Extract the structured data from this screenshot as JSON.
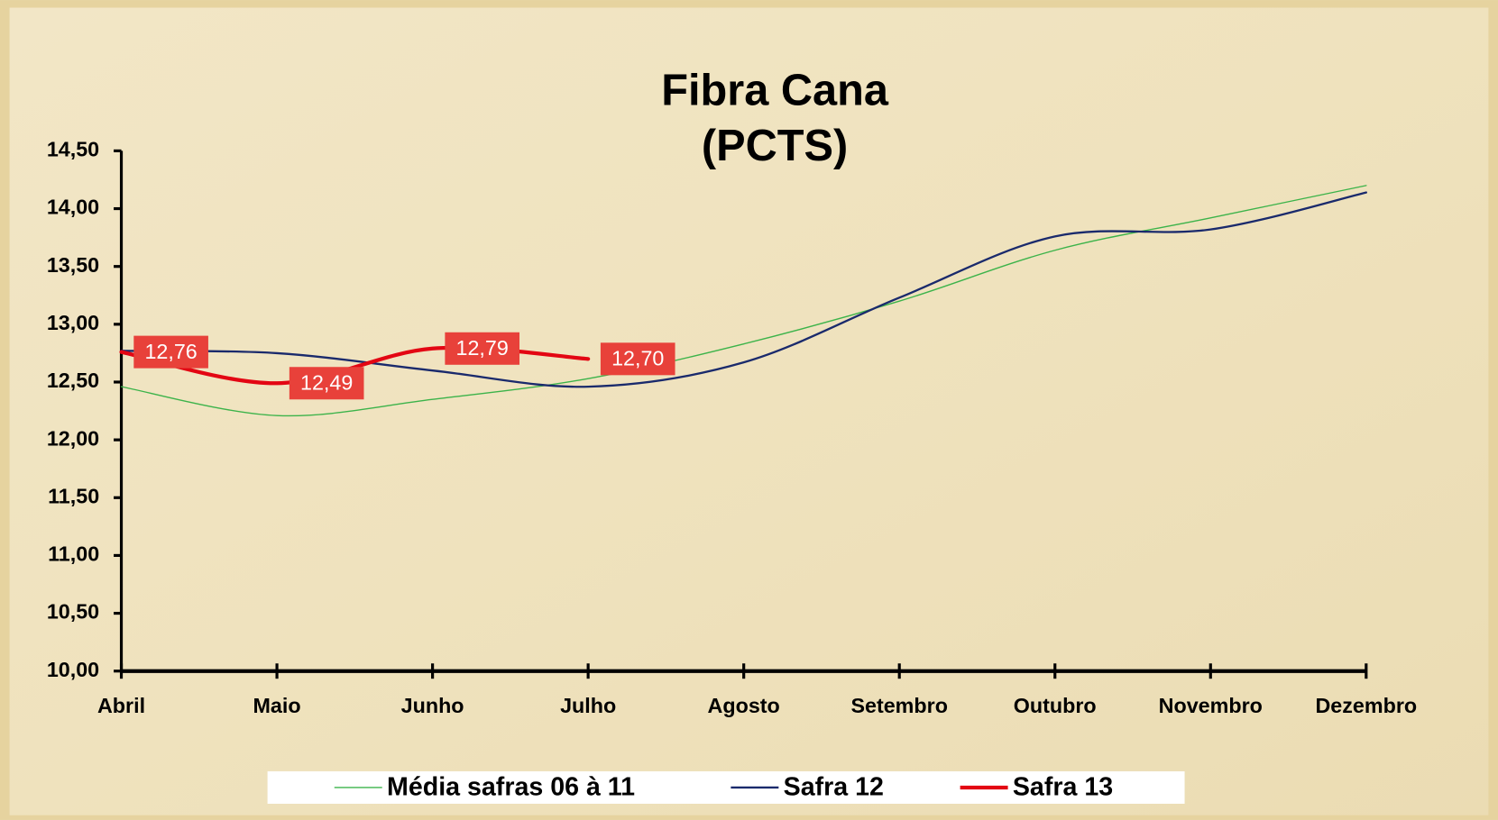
{
  "chart_data": {
    "type": "line",
    "title": "Fibra Cana",
    "subtitle": "(PCTS)",
    "categories": [
      "Abril",
      "Maio",
      "Junho",
      "Julho",
      "Agosto",
      "Setembro",
      "Outubro",
      "Novembro",
      "Dezembro"
    ],
    "series": [
      {
        "name": "Média safras 06 à 11",
        "color": "#3cb34a",
        "width": 1.3,
        "values": [
          12.46,
          12.21,
          12.35,
          12.53,
          12.83,
          13.2,
          13.64,
          13.92,
          14.2
        ]
      },
      {
        "name": "Safra 12",
        "color": "#1a2a6c",
        "width": 2.2,
        "values": [
          12.77,
          12.75,
          12.6,
          12.46,
          12.67,
          13.23,
          13.76,
          13.82,
          14.14
        ]
      },
      {
        "name": "Safra 13",
        "color": "#e30613",
        "width": 4,
        "values": [
          12.76,
          12.49,
          12.79,
          12.7,
          null,
          null,
          null,
          null,
          null
        ],
        "value_labels": [
          "12,76",
          "12,49",
          "12,79",
          "12,70",
          null,
          null,
          null,
          null,
          null
        ]
      }
    ],
    "ylim": [
      10,
      14.5
    ],
    "yticks": [
      {
        "value": 10,
        "label": "10,00"
      },
      {
        "value": 10.5,
        "label": "10,50"
      },
      {
        "value": 11,
        "label": "11,00"
      },
      {
        "value": 11.5,
        "label": "11,50"
      },
      {
        "value": 12,
        "label": "12,00"
      },
      {
        "value": 12.5,
        "label": "12,50"
      },
      {
        "value": 13,
        "label": "13,00"
      },
      {
        "value": 13.5,
        "label": "13,50"
      },
      {
        "value": 14,
        "label": "14,00"
      },
      {
        "value": 14.5,
        "label": "14,50"
      }
    ],
    "grid": false,
    "legend": "bottom"
  }
}
